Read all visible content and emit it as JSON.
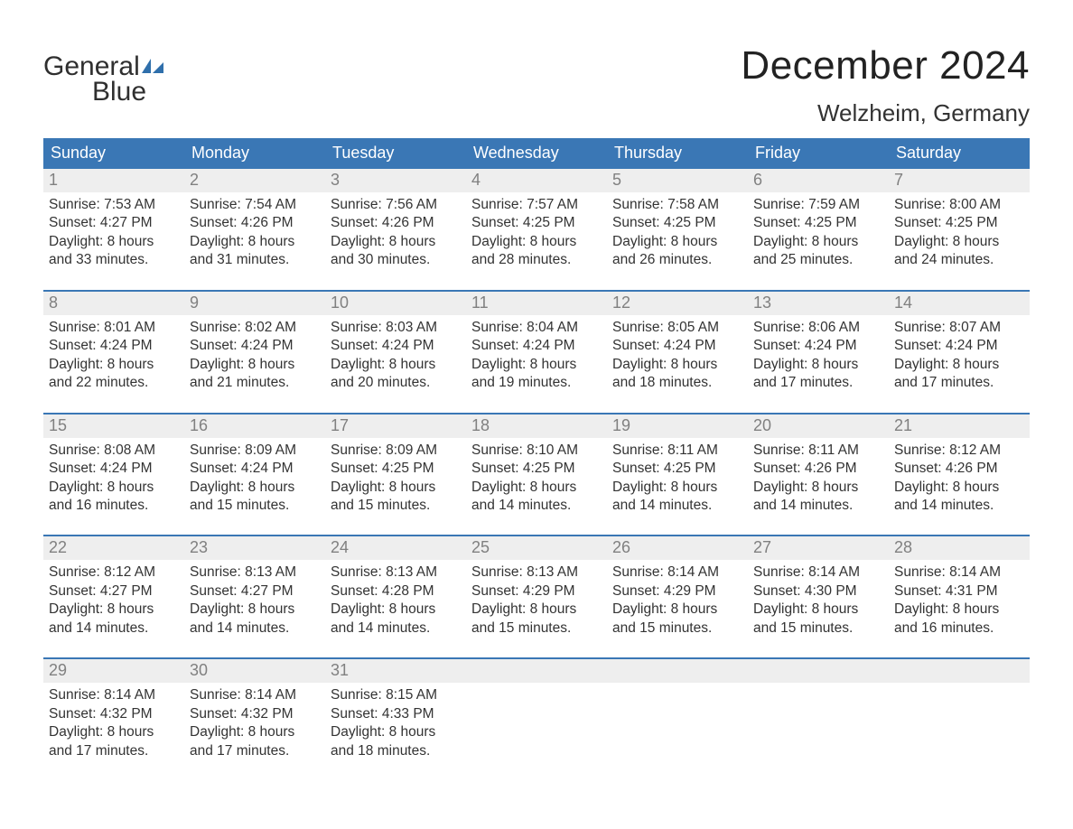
{
  "logo": {
    "word1": "General",
    "word2": "Blue"
  },
  "title": "December 2024",
  "location": "Welzheim, Germany",
  "colors": {
    "header_bg": "#3a77b5",
    "header_text": "#ffffff",
    "daynum_bg": "#eeeeee",
    "daynum_text": "#808080",
    "body_text": "#333333",
    "separator": "#3a77b5",
    "logo_dark": "#2f2f2f",
    "logo_blue": "#2f6fab",
    "background": "#ffffff"
  },
  "typography": {
    "title_fontsize": 44,
    "location_fontsize": 26,
    "dow_fontsize": 18,
    "daynum_fontsize": 18,
    "cell_fontsize": 15.5
  },
  "days_of_week": [
    "Sunday",
    "Monday",
    "Tuesday",
    "Wednesday",
    "Thursday",
    "Friday",
    "Saturday"
  ],
  "weeks": [
    [
      {
        "num": "1",
        "sunrise": "Sunrise: 7:53 AM",
        "sunset": "Sunset: 4:27 PM",
        "d1": "Daylight: 8 hours",
        "d2": "and 33 minutes."
      },
      {
        "num": "2",
        "sunrise": "Sunrise: 7:54 AM",
        "sunset": "Sunset: 4:26 PM",
        "d1": "Daylight: 8 hours",
        "d2": "and 31 minutes."
      },
      {
        "num": "3",
        "sunrise": "Sunrise: 7:56 AM",
        "sunset": "Sunset: 4:26 PM",
        "d1": "Daylight: 8 hours",
        "d2": "and 30 minutes."
      },
      {
        "num": "4",
        "sunrise": "Sunrise: 7:57 AM",
        "sunset": "Sunset: 4:25 PM",
        "d1": "Daylight: 8 hours",
        "d2": "and 28 minutes."
      },
      {
        "num": "5",
        "sunrise": "Sunrise: 7:58 AM",
        "sunset": "Sunset: 4:25 PM",
        "d1": "Daylight: 8 hours",
        "d2": "and 26 minutes."
      },
      {
        "num": "6",
        "sunrise": "Sunrise: 7:59 AM",
        "sunset": "Sunset: 4:25 PM",
        "d1": "Daylight: 8 hours",
        "d2": "and 25 minutes."
      },
      {
        "num": "7",
        "sunrise": "Sunrise: 8:00 AM",
        "sunset": "Sunset: 4:25 PM",
        "d1": "Daylight: 8 hours",
        "d2": "and 24 minutes."
      }
    ],
    [
      {
        "num": "8",
        "sunrise": "Sunrise: 8:01 AM",
        "sunset": "Sunset: 4:24 PM",
        "d1": "Daylight: 8 hours",
        "d2": "and 22 minutes."
      },
      {
        "num": "9",
        "sunrise": "Sunrise: 8:02 AM",
        "sunset": "Sunset: 4:24 PM",
        "d1": "Daylight: 8 hours",
        "d2": "and 21 minutes."
      },
      {
        "num": "10",
        "sunrise": "Sunrise: 8:03 AM",
        "sunset": "Sunset: 4:24 PM",
        "d1": "Daylight: 8 hours",
        "d2": "and 20 minutes."
      },
      {
        "num": "11",
        "sunrise": "Sunrise: 8:04 AM",
        "sunset": "Sunset: 4:24 PM",
        "d1": "Daylight: 8 hours",
        "d2": "and 19 minutes."
      },
      {
        "num": "12",
        "sunrise": "Sunrise: 8:05 AM",
        "sunset": "Sunset: 4:24 PM",
        "d1": "Daylight: 8 hours",
        "d2": "and 18 minutes."
      },
      {
        "num": "13",
        "sunrise": "Sunrise: 8:06 AM",
        "sunset": "Sunset: 4:24 PM",
        "d1": "Daylight: 8 hours",
        "d2": "and 17 minutes."
      },
      {
        "num": "14",
        "sunrise": "Sunrise: 8:07 AM",
        "sunset": "Sunset: 4:24 PM",
        "d1": "Daylight: 8 hours",
        "d2": "and 17 minutes."
      }
    ],
    [
      {
        "num": "15",
        "sunrise": "Sunrise: 8:08 AM",
        "sunset": "Sunset: 4:24 PM",
        "d1": "Daylight: 8 hours",
        "d2": "and 16 minutes."
      },
      {
        "num": "16",
        "sunrise": "Sunrise: 8:09 AM",
        "sunset": "Sunset: 4:24 PM",
        "d1": "Daylight: 8 hours",
        "d2": "and 15 minutes."
      },
      {
        "num": "17",
        "sunrise": "Sunrise: 8:09 AM",
        "sunset": "Sunset: 4:25 PM",
        "d1": "Daylight: 8 hours",
        "d2": "and 15 minutes."
      },
      {
        "num": "18",
        "sunrise": "Sunrise: 8:10 AM",
        "sunset": "Sunset: 4:25 PM",
        "d1": "Daylight: 8 hours",
        "d2": "and 14 minutes."
      },
      {
        "num": "19",
        "sunrise": "Sunrise: 8:11 AM",
        "sunset": "Sunset: 4:25 PM",
        "d1": "Daylight: 8 hours",
        "d2": "and 14 minutes."
      },
      {
        "num": "20",
        "sunrise": "Sunrise: 8:11 AM",
        "sunset": "Sunset: 4:26 PM",
        "d1": "Daylight: 8 hours",
        "d2": "and 14 minutes."
      },
      {
        "num": "21",
        "sunrise": "Sunrise: 8:12 AM",
        "sunset": "Sunset: 4:26 PM",
        "d1": "Daylight: 8 hours",
        "d2": "and 14 minutes."
      }
    ],
    [
      {
        "num": "22",
        "sunrise": "Sunrise: 8:12 AM",
        "sunset": "Sunset: 4:27 PM",
        "d1": "Daylight: 8 hours",
        "d2": "and 14 minutes."
      },
      {
        "num": "23",
        "sunrise": "Sunrise: 8:13 AM",
        "sunset": "Sunset: 4:27 PM",
        "d1": "Daylight: 8 hours",
        "d2": "and 14 minutes."
      },
      {
        "num": "24",
        "sunrise": "Sunrise: 8:13 AM",
        "sunset": "Sunset: 4:28 PM",
        "d1": "Daylight: 8 hours",
        "d2": "and 14 minutes."
      },
      {
        "num": "25",
        "sunrise": "Sunrise: 8:13 AM",
        "sunset": "Sunset: 4:29 PM",
        "d1": "Daylight: 8 hours",
        "d2": "and 15 minutes."
      },
      {
        "num": "26",
        "sunrise": "Sunrise: 8:14 AM",
        "sunset": "Sunset: 4:29 PM",
        "d1": "Daylight: 8 hours",
        "d2": "and 15 minutes."
      },
      {
        "num": "27",
        "sunrise": "Sunrise: 8:14 AM",
        "sunset": "Sunset: 4:30 PM",
        "d1": "Daylight: 8 hours",
        "d2": "and 15 minutes."
      },
      {
        "num": "28",
        "sunrise": "Sunrise: 8:14 AM",
        "sunset": "Sunset: 4:31 PM",
        "d1": "Daylight: 8 hours",
        "d2": "and 16 minutes."
      }
    ],
    [
      {
        "num": "29",
        "sunrise": "Sunrise: 8:14 AM",
        "sunset": "Sunset: 4:32 PM",
        "d1": "Daylight: 8 hours",
        "d2": "and 17 minutes."
      },
      {
        "num": "30",
        "sunrise": "Sunrise: 8:14 AM",
        "sunset": "Sunset: 4:32 PM",
        "d1": "Daylight: 8 hours",
        "d2": "and 17 minutes."
      },
      {
        "num": "31",
        "sunrise": "Sunrise: 8:15 AM",
        "sunset": "Sunset: 4:33 PM",
        "d1": "Daylight: 8 hours",
        "d2": "and 18 minutes."
      },
      null,
      null,
      null,
      null
    ]
  ]
}
